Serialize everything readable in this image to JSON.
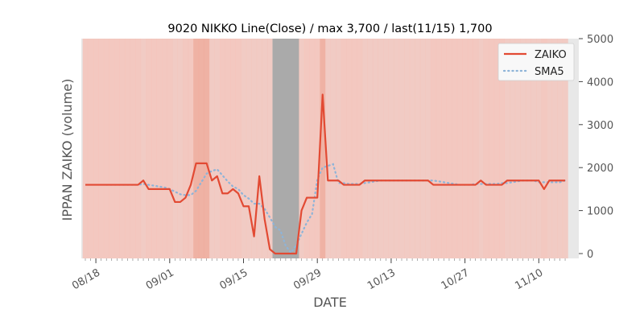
{
  "chart_data": {
    "type": "line",
    "title": "9020 NIKKO Line(Close) / max 3,700 / last(11/15) 1,700",
    "xlabel": "DATE",
    "ylabel": "IPPAN ZAIKO (volume)",
    "ylim": [
      0,
      5000
    ],
    "y_ticks": [
      "0",
      "1000",
      "2000",
      "3000",
      "4000",
      "5000"
    ],
    "y_axis_side": "right",
    "x_ticks": [
      "08/18",
      "09/01",
      "09/15",
      "09/29",
      "10/13",
      "10/27",
      "11/10"
    ],
    "x_ticks_rotated": true,
    "grid": false,
    "legend_position": "top-right",
    "colors": {
      "zaiko": "#e24a33",
      "sma5": "#8eb4d8",
      "background_band": "#f4c2b8",
      "closed_band": "#aaaaaa"
    },
    "series": [
      {
        "name": "ZAIKO",
        "style": "solid",
        "x": [
          "08/16",
          "08/17",
          "08/18",
          "08/19",
          "08/20",
          "08/21",
          "08/22",
          "08/23",
          "08/24",
          "08/25",
          "08/26",
          "08/27",
          "08/28",
          "08/29",
          "08/30",
          "08/31",
          "09/01",
          "09/02",
          "09/03",
          "09/04",
          "09/05",
          "09/06",
          "09/07",
          "09/08",
          "09/09",
          "09/10",
          "09/11",
          "09/12",
          "09/13",
          "09/14",
          "09/15",
          "09/16",
          "09/17",
          "09/18",
          "09/19",
          "09/20",
          "09/21",
          "09/22",
          "09/23",
          "09/24",
          "09/25",
          "09/26",
          "09/27",
          "09/28",
          "09/29",
          "09/30",
          "10/01",
          "10/02",
          "10/03",
          "10/04",
          "10/05",
          "10/06",
          "10/07",
          "10/08",
          "10/09",
          "10/10",
          "10/11",
          "10/12",
          "10/13",
          "10/14",
          "10/15",
          "10/16",
          "10/17",
          "10/18",
          "10/19",
          "10/20",
          "10/21",
          "10/22",
          "10/23",
          "10/24",
          "10/25",
          "10/26",
          "10/27",
          "10/28",
          "10/29",
          "10/30",
          "10/31",
          "11/01",
          "11/02",
          "11/03",
          "11/04",
          "11/05",
          "11/06",
          "11/07",
          "11/08",
          "11/09",
          "11/10",
          "11/11",
          "11/12",
          "11/13",
          "11/14",
          "11/15"
        ],
        "values": [
          1600,
          1600,
          1600,
          1600,
          1600,
          1600,
          1600,
          1600,
          1600,
          1600,
          1600,
          1700,
          1500,
          1500,
          1500,
          1500,
          1500,
          1200,
          1200,
          1300,
          1600,
          2100,
          2100,
          2100,
          1700,
          1800,
          1400,
          1400,
          1500,
          1400,
          1100,
          1100,
          400,
          1800,
          800,
          100,
          0,
          0,
          0,
          0,
          0,
          1000,
          1300,
          1300,
          1300,
          3700,
          1700,
          1700,
          1700,
          1600,
          1600,
          1600,
          1600,
          1700,
          1700,
          1700,
          1700,
          1700,
          1700,
          1700,
          1700,
          1700,
          1700,
          1700,
          1700,
          1700,
          1600,
          1600,
          1600,
          1600,
          1600,
          1600,
          1600,
          1600,
          1600,
          1700,
          1600,
          1600,
          1600,
          1600,
          1700,
          1700,
          1700,
          1700,
          1700,
          1700,
          1700,
          1500,
          1700,
          1700,
          1700,
          1700
        ]
      },
      {
        "name": "SMA5",
        "style": "dotted",
        "x": [
          "08/20",
          "08/21",
          "08/22",
          "08/23",
          "08/24",
          "08/25",
          "08/26",
          "08/27",
          "08/28",
          "08/29",
          "08/30",
          "08/31",
          "09/01",
          "09/02",
          "09/03",
          "09/04",
          "09/05",
          "09/06",
          "09/07",
          "09/08",
          "09/09",
          "09/10",
          "09/11",
          "09/12",
          "09/13",
          "09/14",
          "09/15",
          "09/16",
          "09/17",
          "09/18",
          "09/19",
          "09/20",
          "09/21",
          "09/22",
          "09/23",
          "09/24",
          "09/25",
          "09/26",
          "09/27",
          "09/28",
          "09/29",
          "09/30",
          "10/01",
          "10/02",
          "10/03",
          "10/04",
          "10/05",
          "10/06",
          "10/07",
          "10/08",
          "10/09",
          "10/10",
          "10/11",
          "10/12",
          "10/13",
          "10/14",
          "10/15",
          "10/16",
          "10/17",
          "10/18",
          "10/19",
          "10/20",
          "10/21",
          "10/22",
          "10/23",
          "10/24",
          "10/25",
          "10/26",
          "10/27",
          "10/28",
          "10/29",
          "10/30",
          "10/31",
          "11/01",
          "11/02",
          "11/03",
          "11/04",
          "11/05",
          "11/06",
          "11/07",
          "11/08",
          "11/09",
          "11/10",
          "11/11",
          "11/12",
          "11/13",
          "11/14",
          "11/15"
        ],
        "values": [
          1600,
          1600,
          1600,
          1600,
          1600,
          1600,
          1600,
          1620,
          1600,
          1580,
          1560,
          1540,
          1500,
          1440,
          1380,
          1360,
          1360,
          1460,
          1660,
          1860,
          1920,
          1960,
          1820,
          1680,
          1560,
          1500,
          1360,
          1280,
          1160,
          1160,
          1040,
          840,
          620,
          540,
          180,
          20,
          200,
          460,
          720,
          920,
          1720,
          2000,
          2040,
          2080,
          1640,
          1640,
          1620,
          1620,
          1620,
          1640,
          1660,
          1680,
          1700,
          1700,
          1700,
          1700,
          1700,
          1700,
          1700,
          1700,
          1700,
          1700,
          1700,
          1680,
          1660,
          1640,
          1620,
          1600,
          1600,
          1600,
          1620,
          1620,
          1620,
          1620,
          1620,
          1640,
          1640,
          1660,
          1680,
          1700,
          1700,
          1700,
          1660,
          1660,
          1660,
          1660,
          1660,
          1700
        ]
      }
    ]
  }
}
